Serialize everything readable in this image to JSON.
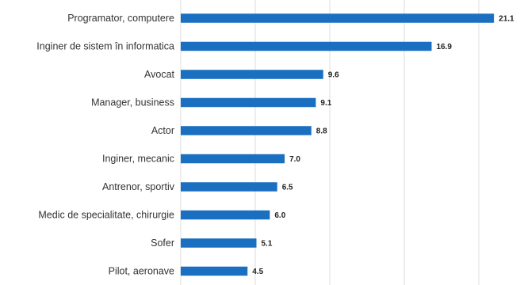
{
  "chart_data": {
    "type": "bar",
    "orientation": "horizontal",
    "title": "",
    "xlabel": "",
    "ylabel": "",
    "categories": [
      "Programator, computere",
      "Inginer de sistem în informatica",
      "Avocat",
      "Manager, business",
      "Actor",
      "Inginer, mecanic",
      "Antrenor, sportiv",
      "Medic de specialitate, chirurgie",
      "Sofer",
      "Pilot, aeronave"
    ],
    "values": [
      21.1,
      16.9,
      9.6,
      9.1,
      8.8,
      7.0,
      6.5,
      6.0,
      5.1,
      4.5
    ],
    "value_labels": [
      "21.1",
      "16.9",
      "9.6",
      "9.1",
      "8.8",
      "7.0",
      "6.5",
      "6.0",
      "5.1",
      "4.5"
    ],
    "xlim": [
      0,
      22
    ],
    "grid": true,
    "bar_color": "#1a6fc0"
  }
}
